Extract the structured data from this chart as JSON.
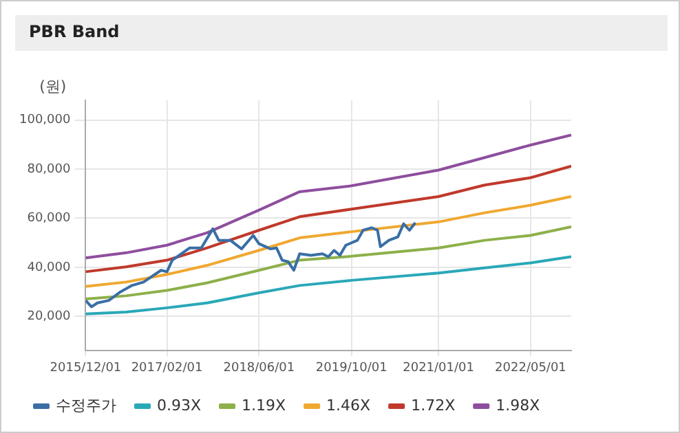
{
  "chart_data": {
    "type": "line",
    "title": "PBR Band",
    "ylabel": "(원)",
    "x": [
      "2015-12-01",
      "2016-07-01",
      "2017-02-01",
      "2017-09-01",
      "2018-06-01",
      "2019-01-01",
      "2019-10-01",
      "2021-01-01",
      "2021-09-01",
      "2022-05-01",
      "2022-12-01"
    ],
    "series": [
      {
        "name": "수정주가",
        "color": "#3a6ea5",
        "x": [
          "2015-12-01",
          "2016-01-01",
          "2016-02-01",
          "2016-04-01",
          "2016-06-01",
          "2016-08-01",
          "2016-10-01",
          "2017-01-01",
          "2017-02-01",
          "2017-03-01",
          "2017-06-01",
          "2017-08-01",
          "2017-10-01",
          "2017-11-01",
          "2018-01-01",
          "2018-03-01",
          "2018-05-01",
          "2018-06-01",
          "2018-08-01",
          "2018-09-01",
          "2018-10-01",
          "2018-11-01",
          "2018-12-01",
          "2019-01-01",
          "2019-03-01",
          "2019-05-01",
          "2019-06-01",
          "2019-07-01",
          "2019-08-01",
          "2019-09-01",
          "2019-11-01",
          "2019-12-01",
          "2020-01-15",
          "2020-02-15",
          "2020-03-01",
          "2020-04-15",
          "2020-06-01",
          "2020-07-01",
          "2020-08-01",
          "2020-09-01"
        ],
        "values": [
          26500,
          23900,
          25500,
          26500,
          30000,
          32600,
          34000,
          38800,
          38200,
          42900,
          47900,
          47900,
          55700,
          51000,
          51000,
          47500,
          53000,
          49600,
          47500,
          47900,
          42900,
          42300,
          38800,
          45500,
          44900,
          45500,
          44300,
          46900,
          44900,
          49000,
          51000,
          55100,
          56100,
          55100,
          48400,
          51000,
          52400,
          57700,
          55100,
          58200
        ]
      },
      {
        "name": "0.93X",
        "color": "#2aa8b8",
        "values": [
          21000,
          21800,
          23500,
          25500,
          29600,
          32600,
          34700,
          37700,
          39800,
          41800,
          44300
        ]
      },
      {
        "name": "1.19X",
        "color": "#8db04a",
        "values": [
          27100,
          28400,
          30600,
          33700,
          38800,
          42900,
          44500,
          47900,
          51000,
          53000,
          56500
        ]
      },
      {
        "name": "1.46X",
        "color": "#f0a830",
        "values": [
          32200,
          34000,
          37100,
          40800,
          46900,
          52000,
          54500,
          58500,
          62200,
          65300,
          68800
        ]
      },
      {
        "name": "1.72X",
        "color": "#c0392b",
        "values": [
          38200,
          40200,
          42900,
          47900,
          55100,
          60600,
          63700,
          68800,
          73500,
          76500,
          81200
        ]
      },
      {
        "name": "1.98X",
        "color": "#8e4e9e",
        "values": [
          43800,
          45900,
          49000,
          54100,
          63300,
          70800,
          73200,
          79600,
          84700,
          89800,
          93900
        ]
      }
    ],
    "xlim": [
      "2015-12-01",
      "2022-12-01"
    ],
    "xticks": [
      {
        "value": "2015-12-01",
        "label": "2015/12/01"
      },
      {
        "value": "2017-02-01",
        "label": "2017/02/01"
      },
      {
        "value": "2018-06-01",
        "label": "2018/06/01"
      },
      {
        "value": "2019-10-01",
        "label": "2019/10/01"
      },
      {
        "value": "2021-01-01",
        "label": "2021/01/01"
      },
      {
        "value": "2022-05-01",
        "label": "2022/05/01"
      }
    ],
    "ylim": [
      6000,
      108000
    ],
    "yticks": [
      {
        "value": 20000,
        "label": "20,000"
      },
      {
        "value": 40000,
        "label": "40,000"
      },
      {
        "value": 60000,
        "label": "60,000"
      },
      {
        "value": 80000,
        "label": "80,000"
      },
      {
        "value": 100000,
        "label": "100,000"
      }
    ],
    "grid": true,
    "legend": "bottom",
    "marker": "none",
    "line_style": "solid"
  }
}
